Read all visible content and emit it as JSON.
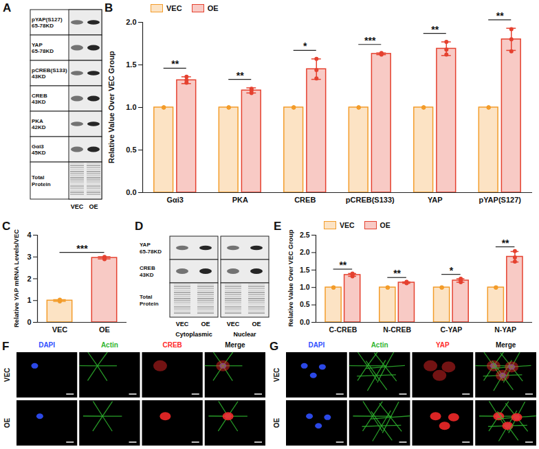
{
  "panel_labels": [
    "A",
    "B",
    "C",
    "D",
    "E",
    "F",
    "G"
  ],
  "blot_A": {
    "rows": [
      {
        "name": "pYAP(S127)",
        "size": "65-78KD"
      },
      {
        "name": "YAP",
        "size": "65-78KD"
      },
      {
        "name": "pCREB(S133)",
        "size": "43KD"
      },
      {
        "name": "CREB",
        "size": "43KD"
      },
      {
        "name": "PKA",
        "size": "42KD"
      },
      {
        "name": "Gαi3",
        "size": "45KD"
      },
      {
        "name": "Total Protein"
      }
    ],
    "lanes": [
      "VEC",
      "OE"
    ]
  },
  "blot_D": {
    "rows": [
      {
        "name": "YAP",
        "size": "65-78KD"
      },
      {
        "name": "CREB",
        "size": "43KD"
      },
      {
        "name": "Total Protein"
      }
    ],
    "lanes": [
      "VEC",
      "OE"
    ],
    "fractions": [
      "Cytoplasmic",
      "Nuclear"
    ]
  },
  "images_F": {
    "groups": [
      "VEC",
      "OE"
    ],
    "channels": [
      {
        "name": "DAPI",
        "color": "#3050ff"
      },
      {
        "name": "Actin",
        "color": "#2fb52f"
      },
      {
        "name": "CREB",
        "color": "#ff2a2a"
      },
      {
        "name": "Merge"
      }
    ]
  },
  "images_G": {
    "groups": [
      "VEC",
      "OE"
    ],
    "channels": [
      {
        "name": "DAPI",
        "color": "#3050ff"
      },
      {
        "name": "Actin",
        "color": "#2fb52f"
      },
      {
        "name": "YAP",
        "color": "#ff2a2a"
      },
      {
        "name": "Merge"
      }
    ]
  },
  "chart_data": [
    {
      "type": "bar",
      "y_label": "Relative Value Over VEC Group",
      "categories": [
        "Gαi3",
        "PKA",
        "CREB",
        "pCREB(S133)",
        "YAP",
        "pYAP(S127)"
      ],
      "series": [
        {
          "name": "VEC",
          "color": "#f39c2a",
          "values": [
            1,
            1,
            1,
            1,
            1,
            1
          ],
          "errors": [
            0,
            0,
            0,
            0,
            0,
            0
          ],
          "points": [
            [
              1,
              1,
              1
            ],
            [
              1,
              1,
              1
            ],
            [
              1,
              1,
              1
            ],
            [
              1,
              1,
              1
            ],
            [
              1,
              1,
              1
            ],
            [
              1,
              1,
              1
            ]
          ]
        },
        {
          "name": "OE",
          "color": "#e5412f",
          "values": [
            1.32,
            1.2,
            1.45,
            1.63,
            1.69,
            1.8
          ],
          "errors": [
            0.04,
            0.03,
            0.12,
            0.01,
            0.08,
            0.13
          ],
          "points": [
            [
              1.29,
              1.32,
              1.36
            ],
            [
              1.17,
              1.2,
              1.22
            ],
            [
              1.34,
              1.44,
              1.57
            ],
            [
              1.62,
              1.63,
              1.64
            ],
            [
              1.62,
              1.68,
              1.77
            ],
            [
              1.66,
              1.8,
              1.92
            ]
          ]
        }
      ],
      "significance": [
        "**",
        "**",
        "*",
        "***",
        "**",
        "**"
      ],
      "ylim": [
        0,
        2
      ],
      "yticks": [
        {
          "value": 0,
          "label": "0.0"
        },
        0.5,
        {
          "value": 1,
          "label": "1.0"
        },
        1.5,
        {
          "value": 2,
          "label": "2.0"
        }
      ],
      "legend": "top-left"
    },
    {
      "type": "bar",
      "y_label": "Relative YAP mRNA Levels/VEC",
      "categories": [
        "VEC",
        "OE"
      ],
      "values": [
        1,
        2.96
      ],
      "errors": [
        0.04,
        0.05
      ],
      "points": [
        [
          0.96,
          1,
          1.04
        ],
        [
          2.9,
          2.97,
          3
        ]
      ],
      "colors": [
        "#f39c2a",
        "#e5412f"
      ],
      "significance": "***",
      "ylim": [
        0,
        4
      ],
      "yticks": [
        0,
        1,
        2,
        3,
        4
      ]
    },
    {
      "type": "bar",
      "y_label": "Relative Value Over VEC Group",
      "categories": [
        "C-CREB",
        "N-CREB",
        "C-YAP",
        "N-YAP"
      ],
      "series": [
        {
          "name": "VEC",
          "color": "#f39c2a",
          "values": [
            1,
            1,
            1,
            1
          ],
          "errors": [
            0,
            0,
            0,
            0
          ],
          "points": [
            [
              1,
              1,
              1
            ],
            [
              1,
              1,
              1
            ],
            [
              1,
              1,
              1
            ],
            [
              1,
              1,
              1
            ]
          ]
        },
        {
          "name": "OE",
          "color": "#e5412f",
          "values": [
            1.36,
            1.14,
            1.2,
            1.88
          ],
          "errors": [
            0.04,
            0.02,
            0.05,
            0.15
          ],
          "points": [
            [
              1.32,
              1.36,
              1.4
            ],
            [
              1.12,
              1.14,
              1.16
            ],
            [
              1.15,
              1.2,
              1.25
            ],
            [
              1.74,
              1.86,
              2.04
            ]
          ]
        }
      ],
      "significance": [
        "**",
        "**",
        "*",
        "**"
      ],
      "ylim": [
        0,
        2.5
      ],
      "yticks": [
        {
          "value": 0,
          "label": "0.0"
        },
        0.5,
        {
          "value": 1,
          "label": "1.0"
        },
        1.5,
        {
          "value": 2,
          "label": "2.0"
        },
        2.5
      ],
      "legend": "top-left"
    }
  ]
}
